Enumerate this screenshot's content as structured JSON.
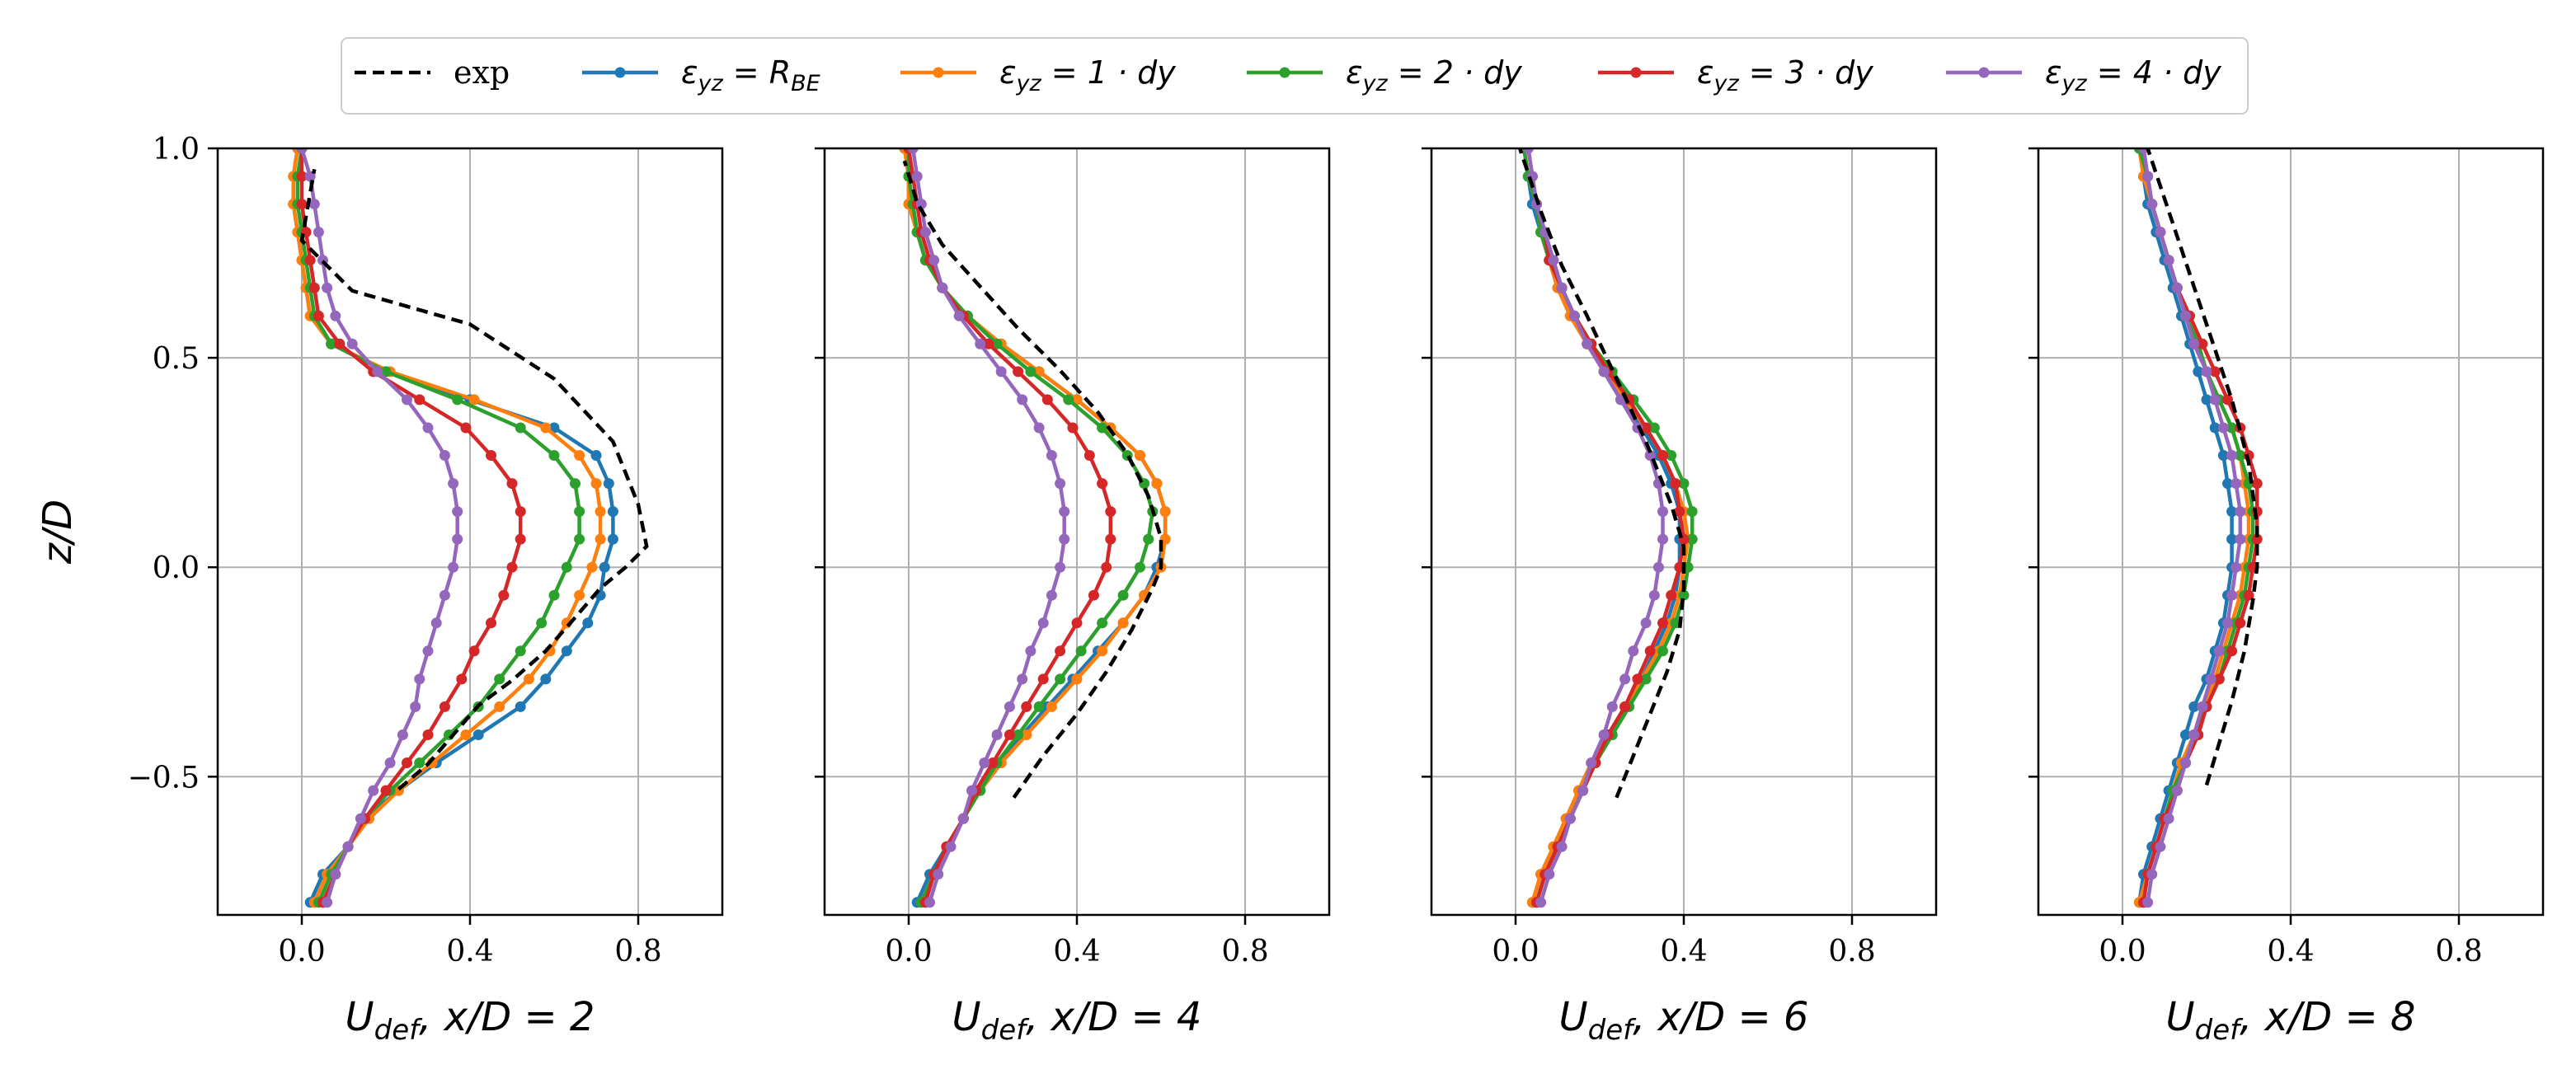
{
  "figure": {
    "legend_position": "top-center"
  },
  "legend": [
    {
      "series": "exp",
      "label": "exp"
    },
    {
      "series": "rbe",
      "sym": "ε",
      "sub": "yz",
      "rhs": "R",
      "rhs_sub": "BE"
    },
    {
      "series": "dy1",
      "sym": "ε",
      "sub": "yz",
      "rhs": "1 · dy"
    },
    {
      "series": "dy2",
      "sym": "ε",
      "sub": "yz",
      "rhs": "2 · dy"
    },
    {
      "series": "dy3",
      "sym": "ε",
      "sub": "yz",
      "rhs": "3 · dy"
    },
    {
      "series": "dy4",
      "sym": "ε",
      "sub": "yz",
      "rhs": "4 · dy"
    }
  ],
  "colors": {
    "exp": "#000000",
    "rbe": "#1f77b4",
    "dy1": "#ff7f0e",
    "dy2": "#2ca02c",
    "dy3": "#d62728",
    "dy4": "#9467bd",
    "grid": "#b0b0b0"
  },
  "chart_data": [
    {
      "type": "line",
      "xlabel": {
        "main": "U",
        "sub": "def",
        "rest": ", x/D = 2"
      },
      "ylabel": "z/D",
      "xlim": [
        -0.2,
        1.0
      ],
      "ylim": [
        -0.83,
        1.0
      ],
      "xticks": [
        "0.0",
        "0.4",
        "0.8"
      ],
      "xtick_values": [
        0.0,
        0.4,
        0.8
      ],
      "yticks": [
        "1.0",
        "0.5",
        "0.0",
        "−0.5"
      ],
      "ytick_values": [
        1.0,
        0.5,
        0.0,
        -0.5
      ],
      "grid": true,
      "z": [
        -0.8,
        -0.733,
        -0.667,
        -0.6,
        -0.533,
        -0.467,
        -0.4,
        -0.333,
        -0.267,
        -0.2,
        -0.133,
        -0.067,
        0.0,
        0.067,
        0.133,
        0.2,
        0.267,
        0.333,
        0.4,
        0.467,
        0.533,
        0.6,
        0.667,
        0.733,
        0.8,
        0.867,
        0.933,
        1.0
      ],
      "exp": {
        "x": [
          0.23,
          0.3,
          0.36,
          0.42,
          0.5,
          0.58,
          0.65,
          0.71,
          0.77,
          0.82,
          0.8,
          0.74,
          0.6,
          0.4,
          0.12,
          0.0,
          0.03
        ],
        "z": [
          -0.53,
          -0.47,
          -0.4,
          -0.33,
          -0.27,
          -0.2,
          -0.12,
          -0.05,
          0.0,
          0.05,
          0.15,
          0.3,
          0.45,
          0.58,
          0.66,
          0.78,
          0.95
        ]
      },
      "series": {
        "rbe": [
          0.02,
          0.05,
          0.11,
          0.15,
          0.23,
          0.32,
          0.42,
          0.52,
          0.58,
          0.63,
          0.68,
          0.71,
          0.72,
          0.74,
          0.74,
          0.73,
          0.7,
          0.6,
          0.4,
          0.2,
          0.07,
          0.02,
          0.01,
          0.0,
          -0.01,
          -0.02,
          -0.02,
          -0.01
        ],
        "dy1": [
          0.03,
          0.06,
          0.11,
          0.16,
          0.23,
          0.31,
          0.39,
          0.47,
          0.54,
          0.59,
          0.63,
          0.66,
          0.69,
          0.71,
          0.71,
          0.7,
          0.66,
          0.58,
          0.41,
          0.21,
          0.07,
          0.02,
          0.01,
          0.0,
          -0.01,
          -0.02,
          -0.02,
          -0.01
        ],
        "dy2": [
          0.04,
          0.07,
          0.11,
          0.15,
          0.21,
          0.28,
          0.35,
          0.42,
          0.47,
          0.52,
          0.57,
          0.6,
          0.63,
          0.66,
          0.66,
          0.65,
          0.6,
          0.52,
          0.37,
          0.2,
          0.07,
          0.03,
          0.02,
          0.01,
          0.0,
          -0.01,
          -0.01,
          0.0
        ],
        "dy3": [
          0.05,
          0.08,
          0.11,
          0.15,
          0.2,
          0.25,
          0.3,
          0.34,
          0.38,
          0.41,
          0.45,
          0.48,
          0.5,
          0.52,
          0.52,
          0.5,
          0.45,
          0.39,
          0.28,
          0.17,
          0.09,
          0.04,
          0.03,
          0.02,
          0.01,
          0.0,
          0.0,
          0.0
        ],
        "dy4": [
          0.06,
          0.08,
          0.11,
          0.14,
          0.17,
          0.21,
          0.24,
          0.27,
          0.28,
          0.3,
          0.32,
          0.34,
          0.36,
          0.37,
          0.37,
          0.36,
          0.34,
          0.3,
          0.25,
          0.18,
          0.12,
          0.08,
          0.06,
          0.05,
          0.04,
          0.03,
          0.02,
          0.0
        ]
      }
    },
    {
      "type": "line",
      "xlabel": {
        "main": "U",
        "sub": "def",
        "rest": ", x/D = 4"
      },
      "ylabel": "z/D",
      "xlim": [
        -0.2,
        1.0
      ],
      "ylim": [
        -0.83,
        1.0
      ],
      "xticks": [
        "0.0",
        "0.4",
        "0.8"
      ],
      "xtick_values": [
        0.0,
        0.4,
        0.8
      ],
      "yticks": [
        "1.0",
        "0.5",
        "0.0",
        "−0.5"
      ],
      "ytick_values": [
        1.0,
        0.5,
        0.0,
        -0.5
      ],
      "grid": true,
      "z": [
        -0.8,
        -0.733,
        -0.667,
        -0.6,
        -0.533,
        -0.467,
        -0.4,
        -0.333,
        -0.267,
        -0.2,
        -0.133,
        -0.067,
        0.0,
        0.067,
        0.133,
        0.2,
        0.267,
        0.333,
        0.4,
        0.467,
        0.533,
        0.6,
        0.667,
        0.733,
        0.8,
        0.867,
        0.933,
        1.0
      ],
      "exp": {
        "x": [
          0.25,
          0.32,
          0.4,
          0.47,
          0.53,
          0.58,
          0.6,
          0.6,
          0.57,
          0.52,
          0.45,
          0.36,
          0.26,
          0.17,
          0.08,
          0.02,
          -0.01
        ],
        "z": [
          -0.55,
          -0.45,
          -0.35,
          -0.25,
          -0.15,
          -0.05,
          0.0,
          0.07,
          0.17,
          0.27,
          0.37,
          0.47,
          0.57,
          0.67,
          0.77,
          0.87,
          0.97
        ]
      },
      "series": {
        "rbe": [
          0.02,
          0.05,
          0.09,
          0.13,
          0.17,
          0.22,
          0.27,
          0.33,
          0.39,
          0.45,
          0.51,
          0.56,
          0.59,
          0.61,
          0.61,
          0.59,
          0.55,
          0.48,
          0.4,
          0.31,
          0.22,
          0.14,
          0.08,
          0.04,
          0.02,
          0.0,
          0.0,
          -0.01
        ],
        "dy1": [
          0.03,
          0.06,
          0.09,
          0.13,
          0.17,
          0.22,
          0.28,
          0.34,
          0.4,
          0.46,
          0.51,
          0.56,
          0.6,
          0.61,
          0.61,
          0.59,
          0.55,
          0.48,
          0.4,
          0.31,
          0.22,
          0.14,
          0.08,
          0.04,
          0.02,
          0.0,
          0.0,
          -0.01
        ],
        "dy2": [
          0.03,
          0.06,
          0.09,
          0.13,
          0.17,
          0.21,
          0.26,
          0.31,
          0.36,
          0.41,
          0.46,
          0.51,
          0.55,
          0.57,
          0.58,
          0.56,
          0.52,
          0.46,
          0.38,
          0.29,
          0.21,
          0.14,
          0.08,
          0.04,
          0.02,
          0.01,
          0.0,
          0.0
        ],
        "dy3": [
          0.04,
          0.06,
          0.09,
          0.13,
          0.16,
          0.2,
          0.24,
          0.28,
          0.32,
          0.36,
          0.4,
          0.44,
          0.47,
          0.48,
          0.48,
          0.46,
          0.43,
          0.39,
          0.33,
          0.26,
          0.19,
          0.13,
          0.08,
          0.05,
          0.03,
          0.02,
          0.01,
          0.0
        ],
        "dy4": [
          0.05,
          0.07,
          0.1,
          0.13,
          0.15,
          0.18,
          0.21,
          0.24,
          0.27,
          0.29,
          0.32,
          0.34,
          0.36,
          0.37,
          0.37,
          0.36,
          0.34,
          0.31,
          0.27,
          0.22,
          0.17,
          0.12,
          0.08,
          0.06,
          0.04,
          0.03,
          0.02,
          0.01
        ]
      }
    },
    {
      "type": "line",
      "xlabel": {
        "main": "U",
        "sub": "def",
        "rest": ", x/D = 6"
      },
      "ylabel": "z/D",
      "xlim": [
        -0.2,
        1.0
      ],
      "ylim": [
        -0.83,
        1.0
      ],
      "xticks": [
        "0.0",
        "0.4",
        "0.8"
      ],
      "xtick_values": [
        0.0,
        0.4,
        0.8
      ],
      "yticks": [
        "1.0",
        "0.5",
        "0.0",
        "−0.5"
      ],
      "ytick_values": [
        1.0,
        0.5,
        0.0,
        -0.5
      ],
      "grid": true,
      "z": [
        -0.8,
        -0.733,
        -0.667,
        -0.6,
        -0.533,
        -0.467,
        -0.4,
        -0.333,
        -0.267,
        -0.2,
        -0.133,
        -0.067,
        0.0,
        0.067,
        0.133,
        0.2,
        0.267,
        0.333,
        0.4,
        0.467,
        0.533,
        0.6,
        0.667,
        0.733,
        0.8,
        0.867,
        0.933,
        1.0
      ],
      "exp": {
        "x": [
          0.24,
          0.28,
          0.32,
          0.36,
          0.39,
          0.4,
          0.4,
          0.37,
          0.31,
          0.24,
          0.17,
          0.11,
          0.06,
          0.01
        ],
        "z": [
          -0.55,
          -0.45,
          -0.35,
          -0.25,
          -0.15,
          -0.05,
          0.05,
          0.15,
          0.3,
          0.45,
          0.6,
          0.72,
          0.85,
          1.0
        ]
      },
      "series": {
        "rbe": [
          0.04,
          0.06,
          0.09,
          0.12,
          0.15,
          0.18,
          0.22,
          0.26,
          0.3,
          0.33,
          0.36,
          0.38,
          0.39,
          0.39,
          0.39,
          0.37,
          0.34,
          0.3,
          0.25,
          0.21,
          0.17,
          0.13,
          0.1,
          0.08,
          0.06,
          0.04,
          0.03,
          0.02
        ],
        "dy1": [
          0.04,
          0.06,
          0.09,
          0.12,
          0.15,
          0.18,
          0.22,
          0.26,
          0.3,
          0.34,
          0.37,
          0.39,
          0.4,
          0.41,
          0.4,
          0.38,
          0.35,
          0.31,
          0.26,
          0.21,
          0.17,
          0.13,
          0.1,
          0.08,
          0.06,
          0.05,
          0.03,
          0.02
        ],
        "dy2": [
          0.05,
          0.07,
          0.1,
          0.13,
          0.16,
          0.19,
          0.23,
          0.27,
          0.31,
          0.35,
          0.38,
          0.4,
          0.41,
          0.42,
          0.42,
          0.4,
          0.37,
          0.33,
          0.28,
          0.23,
          0.18,
          0.14,
          0.11,
          0.08,
          0.06,
          0.05,
          0.03,
          0.02
        ],
        "dy3": [
          0.05,
          0.07,
          0.1,
          0.13,
          0.16,
          0.19,
          0.22,
          0.26,
          0.29,
          0.32,
          0.35,
          0.37,
          0.39,
          0.4,
          0.39,
          0.38,
          0.35,
          0.31,
          0.27,
          0.22,
          0.18,
          0.14,
          0.11,
          0.08,
          0.07,
          0.05,
          0.04,
          0.03
        ],
        "dy4": [
          0.06,
          0.08,
          0.11,
          0.13,
          0.16,
          0.18,
          0.21,
          0.23,
          0.26,
          0.28,
          0.31,
          0.33,
          0.34,
          0.35,
          0.35,
          0.34,
          0.32,
          0.29,
          0.25,
          0.21,
          0.17,
          0.14,
          0.11,
          0.09,
          0.07,
          0.05,
          0.04,
          0.03
        ]
      }
    },
    {
      "type": "line",
      "xlabel": {
        "main": "U",
        "sub": "def",
        "rest": ", x/D = 8"
      },
      "ylabel": "z/D",
      "xlim": [
        -0.2,
        1.0
      ],
      "ylim": [
        -0.83,
        1.0
      ],
      "xticks": [
        "0.0",
        "0.4",
        "0.8"
      ],
      "xtick_values": [
        0.0,
        0.4,
        0.8
      ],
      "yticks": [
        "1.0",
        "0.5",
        "0.0",
        "−0.5"
      ],
      "ytick_values": [
        1.0,
        0.5,
        0.0,
        -0.5
      ],
      "grid": true,
      "z": [
        -0.8,
        -0.733,
        -0.667,
        -0.6,
        -0.533,
        -0.467,
        -0.4,
        -0.333,
        -0.267,
        -0.2,
        -0.133,
        -0.067,
        0.0,
        0.067,
        0.133,
        0.2,
        0.267,
        0.333,
        0.4,
        0.467,
        0.533,
        0.6,
        0.667,
        0.733,
        0.8,
        0.867,
        0.933,
        1.0
      ],
      "exp": {
        "x": [
          0.2,
          0.23,
          0.26,
          0.29,
          0.31,
          0.32,
          0.32,
          0.3,
          0.26,
          0.21,
          0.16,
          0.11,
          0.06
        ],
        "z": [
          -0.52,
          -0.42,
          -0.32,
          -0.2,
          -0.08,
          0.0,
          0.1,
          0.25,
          0.4,
          0.55,
          0.7,
          0.85,
          1.0
        ]
      },
      "series": {
        "rbe": [
          0.04,
          0.05,
          0.07,
          0.09,
          0.11,
          0.13,
          0.15,
          0.17,
          0.2,
          0.22,
          0.24,
          0.25,
          0.26,
          0.26,
          0.26,
          0.25,
          0.24,
          0.22,
          0.2,
          0.18,
          0.16,
          0.14,
          0.12,
          0.1,
          0.08,
          0.06,
          0.05,
          0.04
        ],
        "dy1": [
          0.04,
          0.06,
          0.08,
          0.1,
          0.12,
          0.14,
          0.17,
          0.19,
          0.22,
          0.24,
          0.26,
          0.28,
          0.29,
          0.3,
          0.3,
          0.29,
          0.28,
          0.26,
          0.23,
          0.2,
          0.18,
          0.15,
          0.13,
          0.11,
          0.09,
          0.07,
          0.05,
          0.04
        ],
        "dy2": [
          0.05,
          0.06,
          0.08,
          0.1,
          0.12,
          0.15,
          0.17,
          0.2,
          0.23,
          0.25,
          0.27,
          0.29,
          0.3,
          0.31,
          0.31,
          0.3,
          0.28,
          0.26,
          0.23,
          0.2,
          0.18,
          0.15,
          0.13,
          0.11,
          0.09,
          0.07,
          0.06,
          0.04
        ],
        "dy3": [
          0.05,
          0.06,
          0.08,
          0.1,
          0.13,
          0.15,
          0.18,
          0.2,
          0.23,
          0.26,
          0.28,
          0.3,
          0.31,
          0.32,
          0.32,
          0.32,
          0.3,
          0.28,
          0.25,
          0.22,
          0.19,
          0.16,
          0.13,
          0.11,
          0.09,
          0.07,
          0.06,
          0.05
        ],
        "dy4": [
          0.06,
          0.07,
          0.09,
          0.11,
          0.13,
          0.15,
          0.17,
          0.19,
          0.21,
          0.23,
          0.25,
          0.26,
          0.27,
          0.28,
          0.28,
          0.27,
          0.26,
          0.24,
          0.22,
          0.2,
          0.17,
          0.15,
          0.13,
          0.11,
          0.09,
          0.07,
          0.06,
          0.05
        ]
      }
    }
  ]
}
